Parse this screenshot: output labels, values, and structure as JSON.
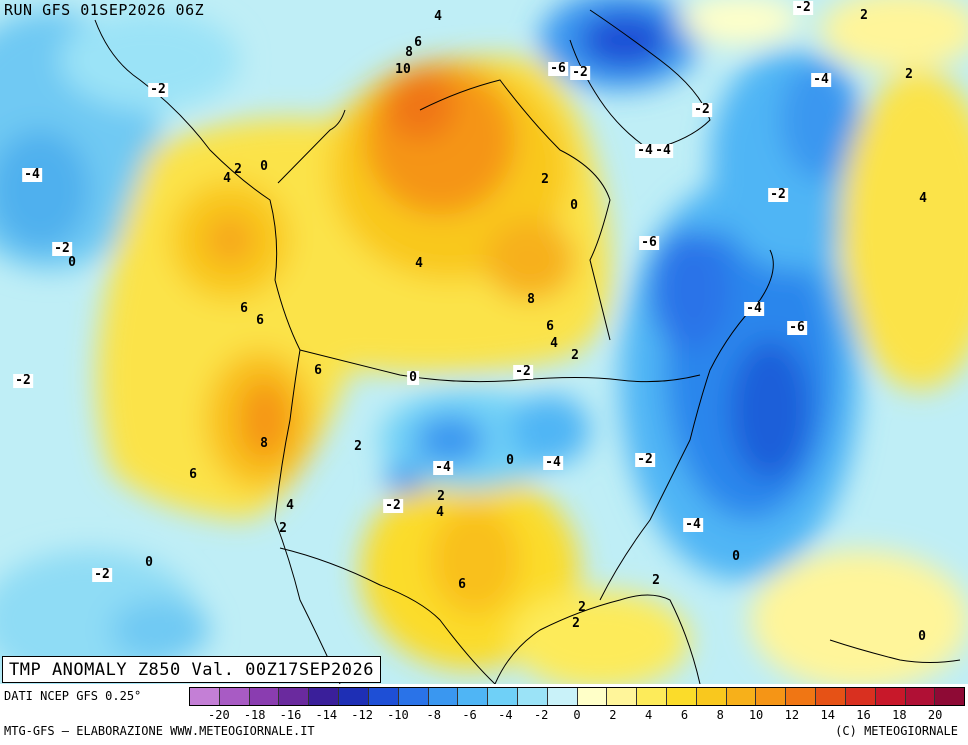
{
  "header": {
    "run_title": "RUN GFS 01SEP2026 06Z",
    "valid_title": "TMP ANOMALY Z850 Val. 00Z17SEP2026"
  },
  "map": {
    "contour_labels": [
      {
        "text": "4"
      },
      {
        "text": "2"
      },
      {
        "text": "-2"
      },
      {
        "text": "8"
      },
      {
        "text": "6"
      },
      {
        "text": "10"
      },
      {
        "text": "-6"
      },
      {
        "text": "-2"
      },
      {
        "text": "-2"
      },
      {
        "text": "-4"
      },
      {
        "text": "2"
      },
      {
        "text": "-2"
      },
      {
        "text": "-4"
      },
      {
        "text": "-4"
      },
      {
        "text": "4"
      },
      {
        "text": "2"
      },
      {
        "text": "0"
      },
      {
        "text": "2"
      },
      {
        "text": "0"
      },
      {
        "text": "-2"
      },
      {
        "text": "4"
      },
      {
        "text": "-4"
      },
      {
        "text": "-2"
      },
      {
        "text": "0"
      },
      {
        "text": "-6"
      },
      {
        "text": "4"
      },
      {
        "text": "8"
      },
      {
        "text": "-4"
      },
      {
        "text": "-6"
      },
      {
        "text": "6"
      },
      {
        "text": "6"
      },
      {
        "text": "6"
      },
      {
        "text": "4"
      },
      {
        "text": "2"
      },
      {
        "text": "-2"
      },
      {
        "text": "6"
      },
      {
        "text": "0"
      },
      {
        "text": "-2"
      },
      {
        "text": "8"
      },
      {
        "text": "2"
      },
      {
        "text": "6"
      },
      {
        "text": "-4"
      },
      {
        "text": "0"
      },
      {
        "text": "-4"
      },
      {
        "text": "-2"
      },
      {
        "text": "4"
      },
      {
        "text": "2"
      },
      {
        "text": "-2"
      },
      {
        "text": "2"
      },
      {
        "text": "4"
      },
      {
        "text": "-4"
      },
      {
        "text": "2"
      },
      {
        "text": "0"
      },
      {
        "text": "0"
      },
      {
        "text": "-2"
      },
      {
        "text": "6"
      },
      {
        "text": "2"
      },
      {
        "text": "2"
      },
      {
        "text": "0"
      }
    ]
  },
  "footer": {
    "source": "DATI NCEP GFS 0.25°",
    "credit": "MTG-GFS – ELABORAZIONE WWW.METEOGIORNALE.IT",
    "copyright": "(C) METEOGIORNALE"
  },
  "legend": {
    "colors": [
      "#c47fd6",
      "#a85bc4",
      "#8a3db0",
      "#6a2a9e",
      "#3a1f9a",
      "#1e2fb5",
      "#1e4fd6",
      "#2a73e8",
      "#3a97f0",
      "#4fb5f5",
      "#6fd0f7",
      "#9be3f7",
      "#c9f2f9",
      "#ffffc8",
      "#fff59a",
      "#fdeb5a",
      "#fbdc2a",
      "#f9c81e",
      "#f7b01a",
      "#f59516",
      "#f07614",
      "#e65216",
      "#d93020",
      "#c8182a",
      "#b01035",
      "#8e0a35"
    ],
    "ticks": [
      "-20",
      "-18",
      "-16",
      "-14",
      "-12",
      "-10",
      "-8",
      "-6",
      "-4",
      "-2",
      "0",
      "2",
      "4",
      "6",
      "8",
      "10",
      "12",
      "14",
      "16",
      "18",
      "20"
    ]
  }
}
